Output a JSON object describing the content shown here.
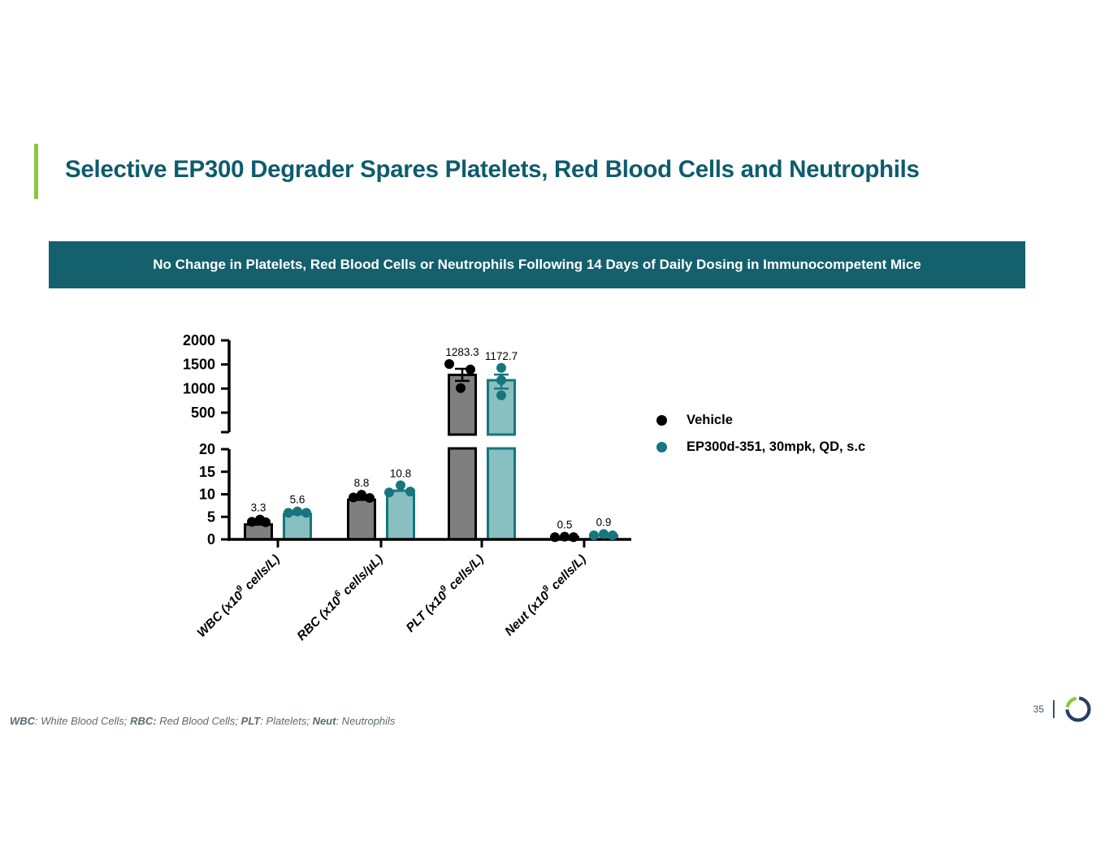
{
  "slide": {
    "title": "Selective EP300 Degrader Spares Platelets, Red Blood Cells and Neutrophils",
    "banner": "No Change in Platelets, Red Blood Cells or Neutrophils Following 14 Days of Daily Dosing in Immunocompetent Mice",
    "page_number": "35"
  },
  "colors": {
    "title_teal": "#0e5c6d",
    "banner_bg": "#14606d",
    "accent_green": "#8dc63f",
    "vehicle_fill": "#7f7f7f",
    "vehicle_edge": "#000000",
    "treatment_fill": "#8abfc1",
    "treatment_edge": "#16767d",
    "logo_navy": "#244062",
    "logo_green": "#8dc63f"
  },
  "footnote_segments": [
    {
      "text": "WBC",
      "bold": true
    },
    {
      "text": ": White Blood Cells; ",
      "bold": false
    },
    {
      "text": "RBC:",
      "bold": true
    },
    {
      "text": " Red Blood Cells; ",
      "bold": false
    },
    {
      "text": "PLT",
      "bold": true
    },
    {
      "text": ": Platelets; ",
      "bold": false
    },
    {
      "text": "Neut",
      "bold": true
    },
    {
      "text": ": Neutrophils",
      "bold": false
    }
  ],
  "chart_data": {
    "type": "bar",
    "broken_axis": true,
    "lower_axis": {
      "range": [
        0,
        20
      ],
      "ticks": [
        0,
        5,
        10,
        15,
        20
      ]
    },
    "upper_axis": {
      "range": [
        100,
        2000
      ],
      "ticks": [
        500,
        1000,
        1500,
        2000
      ]
    },
    "categories": [
      {
        "name": "WBC",
        "label": {
          "pre": "WBC (x10",
          "sup": "9",
          "post": " cells/L)"
        }
      },
      {
        "name": "RBC",
        "label": {
          "pre": "RBC (x10",
          "sup": "6",
          "post": " cells/µL)"
        }
      },
      {
        "name": "PLT",
        "label": {
          "pre": "PLT (x10",
          "sup": "9",
          "post": " cells/L)"
        }
      },
      {
        "name": "Neut",
        "label": {
          "pre": "Neut (x10",
          "sup": "9",
          "post": " cells/L)"
        }
      }
    ],
    "series": [
      {
        "name": "Vehicle",
        "fill": "#7f7f7f",
        "edge": "#000000",
        "dot": "#000000",
        "values": [
          3.3,
          8.8,
          1283.3,
          0.5
        ],
        "value_labels": [
          "3.3",
          "8.8",
          "1283.3",
          "0.5"
        ],
        "points": [
          [
            [
              3.9,
              -8
            ],
            [
              4.4,
              2
            ],
            [
              3.8,
              9
            ]
          ],
          [
            [
              9.3,
              -10
            ],
            [
              9.9,
              0
            ],
            [
              9.2,
              10
            ]
          ],
          [
            [
              1510,
              -16
            ],
            [
              1395,
              10
            ],
            [
              1010,
              -2
            ]
          ],
          [
            [
              0.5,
              -12
            ],
            [
              0.6,
              0
            ],
            [
              0.5,
              11
            ]
          ]
        ],
        "error_bars": [
          null,
          null,
          {
            "low": 1160,
            "high": 1410
          },
          null
        ]
      },
      {
        "name": "EP300d-351, 30mpk, QD, s.c",
        "fill": "#8abfc1",
        "edge": "#16767d",
        "dot": "#16767d",
        "values": [
          5.6,
          10.8,
          1172.7,
          0.9
        ],
        "value_labels": [
          "5.6",
          "10.8",
          "1172.7",
          "0.9"
        ],
        "points": [
          [
            [
              5.9,
              -11
            ],
            [
              6.2,
              0
            ],
            [
              5.9,
              11
            ]
          ],
          [
            [
              10.4,
              -14
            ],
            [
              12.0,
              0
            ],
            [
              10.6,
              12
            ]
          ],
          [
            [
              1430,
              0
            ],
            [
              1175,
              0
            ],
            [
              860,
              0
            ]
          ],
          [
            [
              0.9,
              -12
            ],
            [
              1.2,
              0
            ],
            [
              0.9,
              11
            ]
          ]
        ],
        "error_bars": [
          null,
          null,
          {
            "low": 1000,
            "high": 1290
          },
          null
        ]
      }
    ],
    "legend": [
      {
        "label": "Vehicle",
        "color": "#000000"
      },
      {
        "label": "EP300d-351, 30mpk, QD, s.c",
        "color": "#16767d"
      }
    ],
    "legend_position": "right"
  }
}
